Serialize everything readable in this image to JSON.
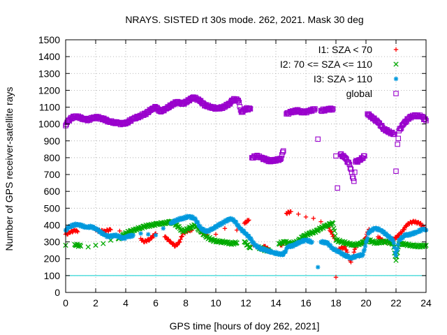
{
  "chart_data": {
    "type": "scatter",
    "title": "NRAYS. SISTED rt 30s mode. 262, 2021. Mask 30 deg",
    "xlabel": "GPS time [hours of doy 262, 2021]",
    "ylabel": "Number of GPS receiver-satellite rays",
    "xlim": [
      0,
      24
    ],
    "ylim": [
      0,
      1500
    ],
    "x_ticks": [
      "0",
      "2",
      "4",
      "6",
      "8",
      "10",
      "12",
      "14",
      "16",
      "18",
      "20",
      "22",
      "24"
    ],
    "y_ticks": [
      "0",
      "100",
      "200",
      "300",
      "400",
      "500",
      "600",
      "700",
      "800",
      "900",
      "1000",
      "1100",
      "1200",
      "1300",
      "1400",
      "1500"
    ],
    "grid": true,
    "legend_position": "top-right",
    "reference_line": {
      "y": 100,
      "color": "#00cccc"
    },
    "series": [
      {
        "name": "I1: SZA < 70",
        "color": "#ff0000",
        "marker": "+",
        "points": [
          [
            0.0,
            345
          ],
          [
            0.3,
            355
          ],
          [
            0.6,
            370
          ],
          [
            0.8,
            360
          ],
          [
            2.0,
            370
          ],
          [
            2.2,
            365
          ],
          [
            2.6,
            365
          ],
          [
            3.0,
            372
          ],
          [
            3.6,
            365
          ],
          [
            4.2,
            360
          ],
          [
            5.0,
            320
          ],
          [
            5.2,
            300
          ],
          [
            5.6,
            315
          ],
          [
            6.0,
            350
          ],
          [
            6.6,
            330
          ],
          [
            7.0,
            300
          ],
          [
            7.3,
            275
          ],
          [
            7.6,
            300
          ],
          [
            7.8,
            350
          ],
          [
            8.2,
            370
          ],
          [
            8.4,
            368
          ],
          [
            9.0,
            360
          ],
          [
            9.4,
            340
          ],
          [
            10.0,
            345
          ],
          [
            10.6,
            380
          ],
          [
            11.4,
            370
          ],
          [
            11.9,
            410
          ],
          [
            12.2,
            430
          ],
          [
            12.5,
            280
          ],
          [
            13.2,
            275
          ],
          [
            13.6,
            250
          ],
          [
            14.3,
            280
          ],
          [
            14.5,
            290
          ],
          [
            14.7,
            470
          ],
          [
            15.0,
            480
          ],
          [
            15.5,
            465
          ],
          [
            16.0,
            448
          ],
          [
            16.5,
            440
          ],
          [
            17.0,
            420
          ],
          [
            17.5,
            390
          ],
          [
            17.9,
            320
          ],
          [
            18.0,
            90
          ],
          [
            18.1,
            250
          ],
          [
            18.3,
            260
          ],
          [
            18.6,
            270
          ],
          [
            19.0,
            180
          ],
          [
            19.3,
            265
          ],
          [
            19.8,
            290
          ],
          [
            20.2,
            375
          ],
          [
            20.8,
            330
          ],
          [
            21.2,
            300
          ],
          [
            21.6,
            300
          ],
          [
            22.0,
            325
          ],
          [
            22.4,
            360
          ],
          [
            22.8,
            410
          ],
          [
            23.2,
            420
          ],
          [
            23.6,
            410
          ],
          [
            24.0,
            370
          ]
        ]
      },
      {
        "name": "I2: 70 <= SZA <= 110",
        "color": "#00aa00",
        "marker": "x",
        "points": [
          [
            0.0,
            280
          ],
          [
            0.6,
            285
          ],
          [
            1.0,
            275
          ],
          [
            1.5,
            270
          ],
          [
            2.0,
            280
          ],
          [
            2.5,
            290
          ],
          [
            3.0,
            310
          ],
          [
            3.5,
            320
          ],
          [
            3.8,
            340
          ],
          [
            4.2,
            360
          ],
          [
            4.6,
            370
          ],
          [
            5.0,
            385
          ],
          [
            5.4,
            395
          ],
          [
            5.8,
            400
          ],
          [
            6.2,
            410
          ],
          [
            6.6,
            410
          ],
          [
            7.0,
            420
          ],
          [
            7.4,
            400
          ],
          [
            7.8,
            360
          ],
          [
            8.2,
            380
          ],
          [
            8.6,
            400
          ],
          [
            9.0,
            360
          ],
          [
            9.4,
            330
          ],
          [
            9.8,
            310
          ],
          [
            10.2,
            300
          ],
          [
            10.6,
            300
          ],
          [
            11.0,
            290
          ],
          [
            11.4,
            295
          ],
          [
            11.9,
            300
          ],
          [
            12.3,
            265
          ],
          [
            12.8,
            270
          ],
          [
            13.2,
            255
          ],
          [
            13.6,
            245
          ],
          [
            14.2,
            290
          ],
          [
            14.6,
            300
          ],
          [
            15.0,
            290
          ],
          [
            15.4,
            300
          ],
          [
            15.8,
            330
          ],
          [
            16.2,
            350
          ],
          [
            16.6,
            360
          ],
          [
            17.0,
            380
          ],
          [
            17.4,
            400
          ],
          [
            17.8,
            410
          ],
          [
            18.0,
            310
          ],
          [
            18.4,
            300
          ],
          [
            18.8,
            290
          ],
          [
            19.2,
            280
          ],
          [
            19.6,
            290
          ],
          [
            19.9,
            300
          ],
          [
            20.2,
            310
          ],
          [
            20.6,
            295
          ],
          [
            21.0,
            300
          ],
          [
            21.4,
            300
          ],
          [
            21.8,
            290
          ],
          [
            22.0,
            190
          ],
          [
            22.2,
            290
          ],
          [
            22.6,
            285
          ],
          [
            23.0,
            280
          ],
          [
            23.4,
            275
          ],
          [
            23.8,
            275
          ],
          [
            24.0,
            280
          ]
        ]
      },
      {
        "name": "I3: SZA > 110",
        "color": "#0099dd",
        "marker": "*",
        "points": [
          [
            0.0,
            370
          ],
          [
            0.2,
            385
          ],
          [
            0.5,
            400
          ],
          [
            0.8,
            405
          ],
          [
            1.1,
            395
          ],
          [
            1.4,
            385
          ],
          [
            1.7,
            390
          ],
          [
            2.0,
            380
          ],
          [
            2.3,
            360
          ],
          [
            2.6,
            340
          ],
          [
            2.9,
            330
          ],
          [
            3.2,
            340
          ],
          [
            3.5,
            335
          ],
          [
            3.8,
            320
          ],
          [
            4.1,
            330
          ],
          [
            4.5,
            340
          ],
          [
            5.0,
            350
          ],
          [
            5.5,
            345
          ],
          [
            6.0,
            340
          ],
          [
            6.5,
            380
          ],
          [
            7.0,
            410
          ],
          [
            7.4,
            430
          ],
          [
            7.8,
            440
          ],
          [
            8.2,
            450
          ],
          [
            8.6,
            440
          ],
          [
            9.0,
            380
          ],
          [
            9.4,
            360
          ],
          [
            9.8,
            380
          ],
          [
            10.2,
            400
          ],
          [
            10.6,
            420
          ],
          [
            11.0,
            440
          ],
          [
            11.3,
            420
          ],
          [
            11.6,
            380
          ],
          [
            12.0,
            350
          ],
          [
            12.3,
            320
          ],
          [
            12.6,
            280
          ],
          [
            13.0,
            260
          ],
          [
            13.4,
            250
          ],
          [
            13.8,
            235
          ],
          [
            14.2,
            230
          ],
          [
            14.5,
            225
          ],
          [
            14.8,
            270
          ],
          [
            15.2,
            280
          ],
          [
            15.6,
            300
          ],
          [
            16.0,
            310
          ],
          [
            16.4,
            300
          ],
          [
            16.8,
            150
          ],
          [
            17.0,
            300
          ],
          [
            17.4,
            295
          ],
          [
            17.8,
            260
          ],
          [
            18.2,
            240
          ],
          [
            18.6,
            220
          ],
          [
            19.0,
            205
          ],
          [
            19.4,
            215
          ],
          [
            19.8,
            225
          ],
          [
            20.2,
            360
          ],
          [
            20.6,
            380
          ],
          [
            21.0,
            370
          ],
          [
            21.4,
            340
          ],
          [
            21.8,
            310
          ],
          [
            22.0,
            220
          ],
          [
            22.2,
            310
          ],
          [
            22.6,
            340
          ],
          [
            23.0,
            345
          ],
          [
            23.4,
            360
          ],
          [
            23.8,
            375
          ],
          [
            24.0,
            370
          ]
        ]
      },
      {
        "name": "global",
        "color": "#9900cc",
        "marker": "square",
        "points": [
          [
            0.0,
            990
          ],
          [
            0.1,
            1010
          ],
          [
            0.3,
            1030
          ],
          [
            0.6,
            1045
          ],
          [
            0.9,
            1040
          ],
          [
            1.2,
            1030
          ],
          [
            1.5,
            1025
          ],
          [
            1.8,
            1035
          ],
          [
            2.1,
            1040
          ],
          [
            2.5,
            1030
          ],
          [
            2.9,
            1015
          ],
          [
            3.2,
            1010
          ],
          [
            3.5,
            1005
          ],
          [
            3.8,
            1000
          ],
          [
            4.1,
            1010
          ],
          [
            4.5,
            1030
          ],
          [
            4.9,
            1045
          ],
          [
            5.3,
            1060
          ],
          [
            5.7,
            1085
          ],
          [
            6.0,
            1100
          ],
          [
            6.3,
            1075
          ],
          [
            6.7,
            1090
          ],
          [
            7.0,
            1110
          ],
          [
            7.4,
            1130
          ],
          [
            7.8,
            1120
          ],
          [
            8.2,
            1140
          ],
          [
            8.5,
            1160
          ],
          [
            8.9,
            1140
          ],
          [
            9.3,
            1110
          ],
          [
            9.7,
            1100
          ],
          [
            10.1,
            1090
          ],
          [
            10.5,
            1100
          ],
          [
            10.9,
            1120
          ],
          [
            11.2,
            1150
          ],
          [
            11.5,
            1140
          ],
          [
            11.7,
            1070
          ],
          [
            12.0,
            1090
          ],
          [
            12.3,
            1090
          ],
          [
            12.4,
            800
          ],
          [
            12.7,
            810
          ],
          [
            13.0,
            800
          ],
          [
            13.3,
            790
          ],
          [
            13.6,
            780
          ],
          [
            13.9,
            785
          ],
          [
            14.3,
            790
          ],
          [
            14.5,
            840
          ],
          [
            14.7,
            1060
          ],
          [
            15.0,
            1070
          ],
          [
            15.4,
            1080
          ],
          [
            15.8,
            1070
          ],
          [
            16.2,
            1075
          ],
          [
            16.6,
            1090
          ],
          [
            16.8,
            910
          ],
          [
            17.0,
            1080
          ],
          [
            17.4,
            1085
          ],
          [
            17.8,
            1090
          ],
          [
            18.0,
            810
          ],
          [
            18.1,
            620
          ],
          [
            18.3,
            820
          ],
          [
            18.6,
            800
          ],
          [
            18.9,
            760
          ],
          [
            19.2,
            660
          ],
          [
            19.3,
            775
          ],
          [
            19.6,
            785
          ],
          [
            19.9,
            810
          ],
          [
            20.1,
            1060
          ],
          [
            20.4,
            1040
          ],
          [
            20.8,
            1010
          ],
          [
            21.2,
            970
          ],
          [
            21.6,
            950
          ],
          [
            21.9,
            940
          ],
          [
            22.0,
            720
          ],
          [
            22.1,
            880
          ],
          [
            22.2,
            960
          ],
          [
            22.5,
            1000
          ],
          [
            22.9,
            1040
          ],
          [
            23.3,
            1050
          ],
          [
            23.7,
            1045
          ],
          [
            24.0,
            1020
          ]
        ]
      }
    ]
  }
}
